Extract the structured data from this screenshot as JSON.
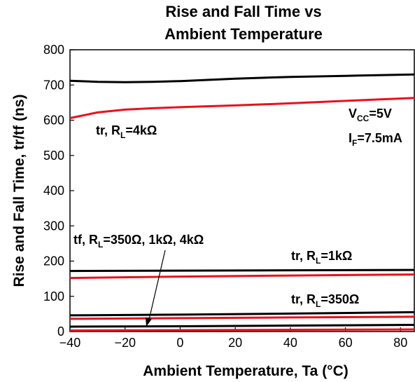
{
  "chart_data": {
    "type": "line",
    "title_lines": [
      "Rise and Fall Time vs",
      "Ambient Temperature"
    ],
    "xlabel": "Ambient Temperature, Ta (°C)",
    "ylabel": "Rise and Fall Time, tr/tf (ns)",
    "xlim": [
      -40,
      85
    ],
    "ylim": [
      0,
      800
    ],
    "xticks": [
      -40,
      -20,
      0,
      20,
      40,
      60,
      80
    ],
    "xtick_labels": [
      "−40",
      "−20",
      "0",
      "20",
      "40",
      "60",
      "80"
    ],
    "yticks": [
      0,
      100,
      200,
      300,
      400,
      500,
      600,
      700,
      800
    ],
    "grid": false,
    "colors": {
      "black": "#000000",
      "red": "#e8121b"
    },
    "series": [
      {
        "color": "black",
        "x": [
          -40,
          -30,
          -20,
          -10,
          0,
          20,
          40,
          60,
          85
        ],
        "y": [
          712,
          709,
          708,
          709,
          711,
          718,
          723,
          726,
          730
        ]
      },
      {
        "color": "red",
        "x": [
          -40,
          -30,
          -20,
          -10,
          0,
          20,
          40,
          60,
          85
        ],
        "y": [
          606,
          622,
          630,
          634,
          637,
          642,
          648,
          655,
          663
        ]
      },
      {
        "color": "black",
        "x": [
          -40,
          0,
          40,
          85
        ],
        "y": [
          172,
          173,
          174,
          175
        ]
      },
      {
        "color": "red",
        "x": [
          -40,
          0,
          40,
          85
        ],
        "y": [
          152,
          156,
          159,
          162
        ]
      },
      {
        "color": "black",
        "x": [
          -40,
          0,
          40,
          85
        ],
        "y": [
          46,
          48,
          51,
          55
        ]
      },
      {
        "color": "red",
        "x": [
          -40,
          0,
          40,
          85
        ],
        "y": [
          36,
          38,
          40,
          42
        ]
      },
      {
        "color": "black",
        "x": [
          -40,
          0,
          40,
          85
        ],
        "y": [
          14,
          15,
          17,
          19
        ]
      },
      {
        "color": "red",
        "x": [
          -40,
          0,
          40,
          85
        ],
        "y": [
          3,
          4,
          5,
          6
        ]
      }
    ],
    "annotations": {
      "tr_4k": {
        "main": "tr, R",
        "sub": "L",
        "tail": "=4kΩ"
      },
      "tr_1k": {
        "main": "tr, R",
        "sub": "L",
        "tail": "=1kΩ"
      },
      "tr_350": {
        "main": "tr, R",
        "sub": "L",
        "tail": "=350Ω"
      },
      "tf_all": {
        "main": "tf, R",
        "sub": "L",
        "tail": "=350Ω, 1kΩ, 4kΩ"
      },
      "vcc": {
        "main": "V",
        "sub": "CC",
        "tail": "=5V"
      },
      "if": {
        "main": "I",
        "sub": "F",
        "tail": "=7.5mA"
      }
    }
  }
}
